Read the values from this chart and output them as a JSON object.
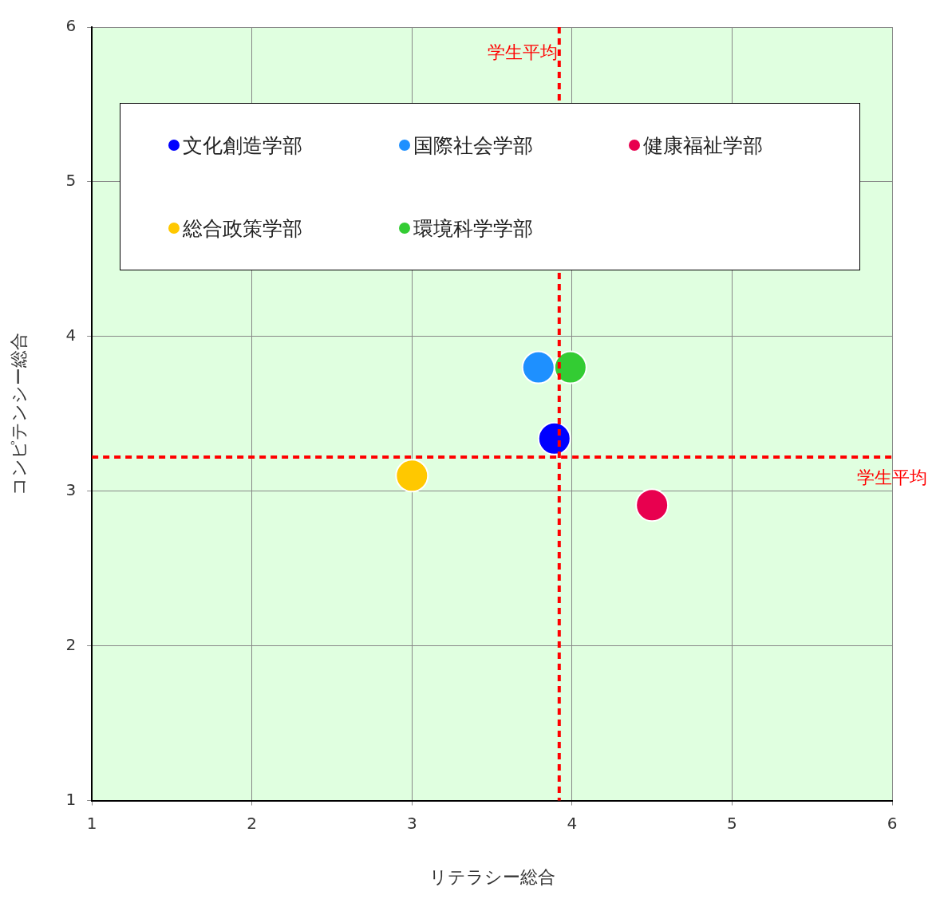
{
  "chart_data": {
    "type": "scatter",
    "xlabel": "リテラシー総合",
    "ylabel": "コンピテンシー総合",
    "xlim": [
      1,
      6
    ],
    "xticks": [
      1,
      2,
      3,
      4,
      5,
      6
    ],
    "ylim": [
      1,
      6
    ],
    "yticks": [
      1,
      2,
      3,
      4,
      5,
      6
    ],
    "grid": true,
    "legend": "top",
    "marker": "circle",
    "series": [
      {
        "name": "文化創造学部",
        "color": "#0000ff",
        "x": [
          3.89
        ],
        "values": [
          3.34
        ]
      },
      {
        "name": "国際社会学部",
        "color": "#1e90ff",
        "x": [
          3.79
        ],
        "values": [
          3.8
        ]
      },
      {
        "name": "健康福祉学部",
        "color": "#e8004f",
        "x": [
          4.5
        ],
        "values": [
          2.91
        ]
      },
      {
        "name": "総合政策学部",
        "color": "#ffc800",
        "x": [
          3.0
        ],
        "values": [
          3.1
        ]
      },
      {
        "name": "環境科学学部",
        "color": "#33cc33",
        "x": [
          3.99
        ],
        "values": [
          3.8
        ]
      }
    ],
    "ref_lines": [
      {
        "axis": "x",
        "value": 3.92,
        "label": "学生平均",
        "color": "#ff0000",
        "line_style": "dashed"
      },
      {
        "axis": "y",
        "value": 3.22,
        "label": "学生平均",
        "color": "#ff0000",
        "line_style": "dashed"
      }
    ]
  }
}
